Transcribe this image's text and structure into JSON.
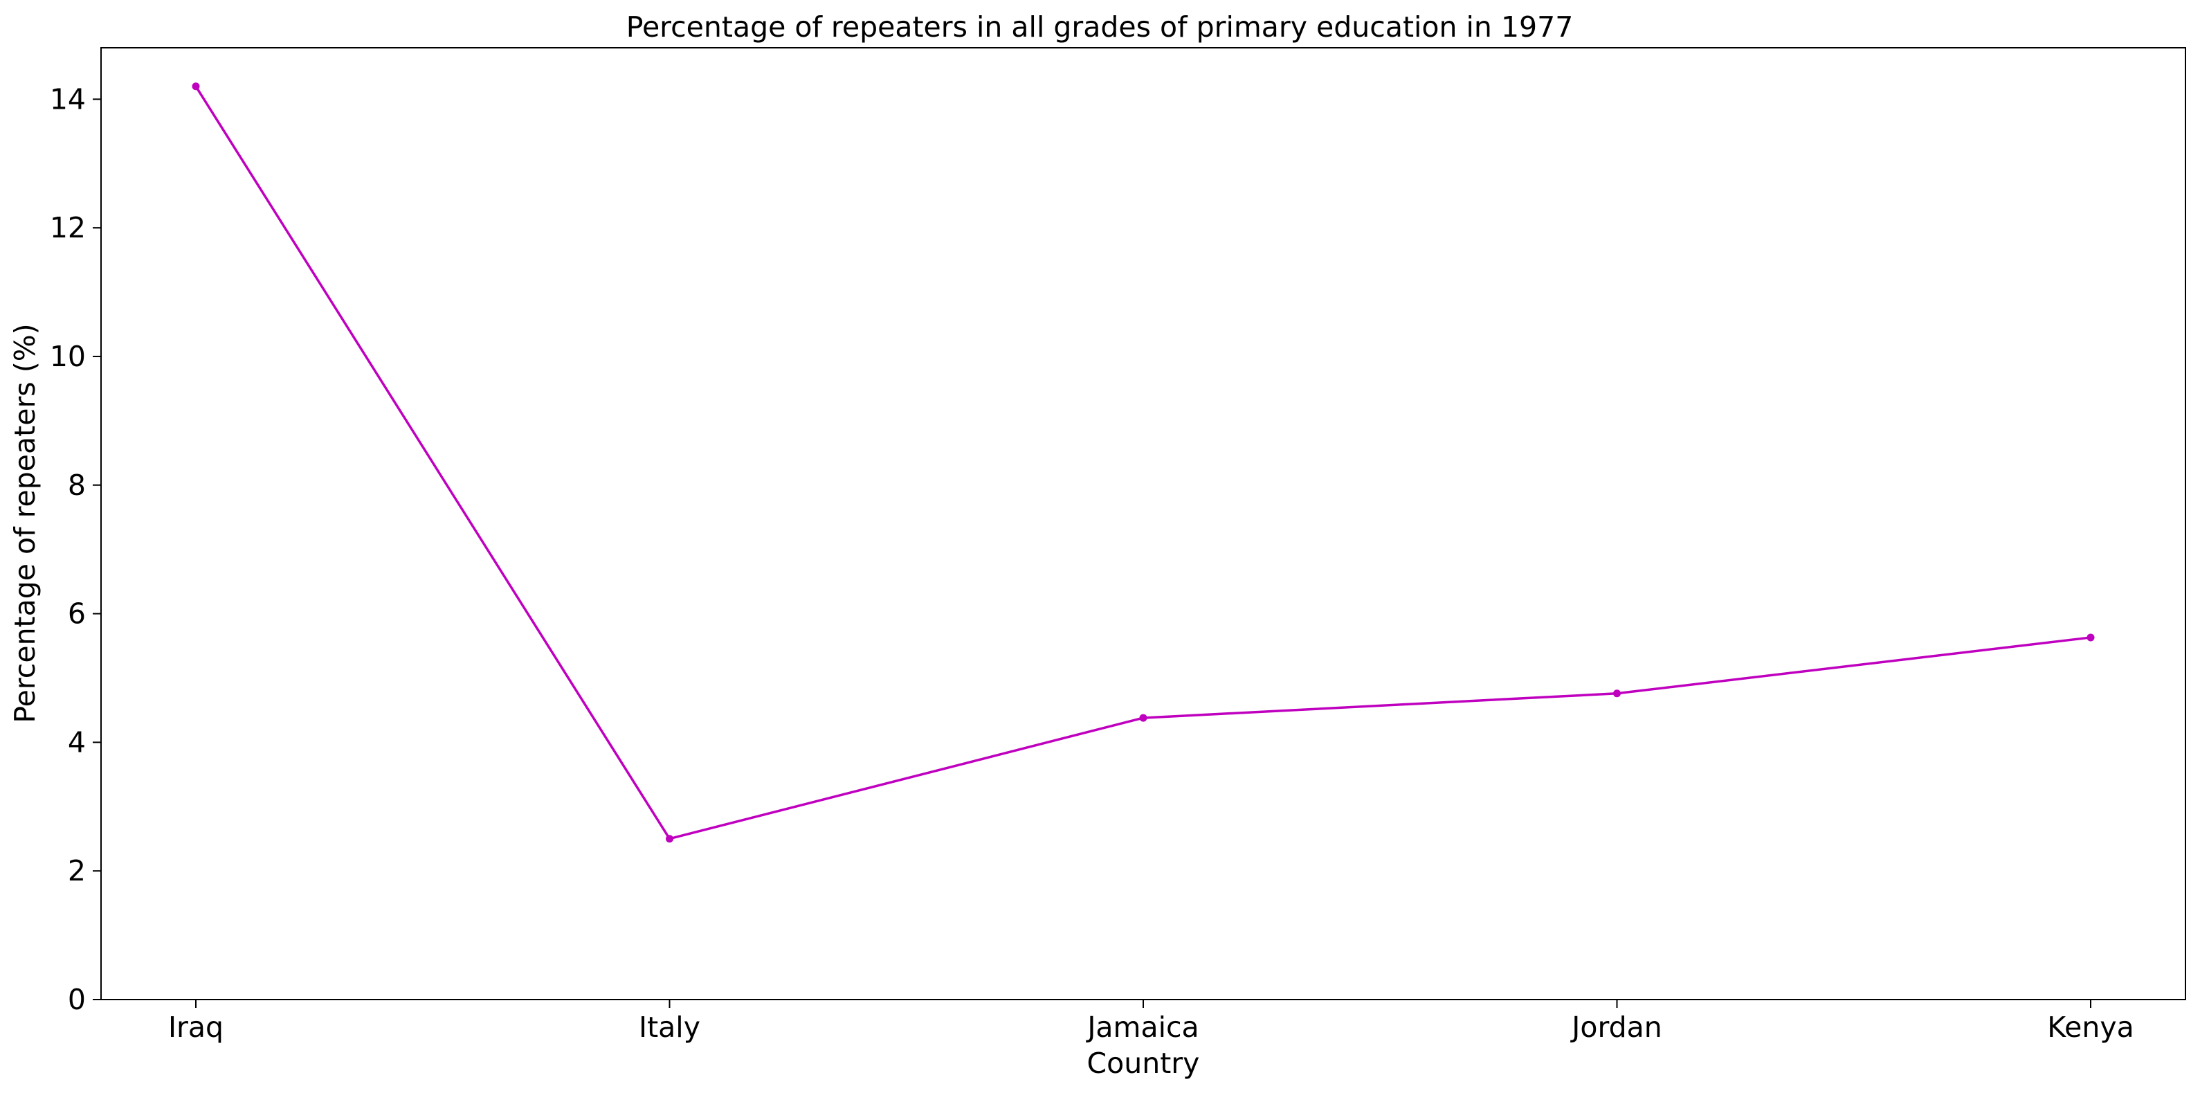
{
  "chart_data": {
    "type": "line",
    "title": "Percentage of repeaters in all grades of primary education in 1977",
    "xlabel": "Country",
    "ylabel": "Percentage of repeaters (%)",
    "categories": [
      "Iraq",
      "Italy",
      "Jamaica",
      "Jordan",
      "Kenya"
    ],
    "series": [
      {
        "values": [
          14.2,
          2.5,
          4.38,
          4.76,
          5.63
        ],
        "color": "#bf00bf"
      }
    ],
    "ylim": [
      0,
      14.8
    ],
    "yticks": [
      0,
      2,
      4,
      6,
      8,
      10,
      12,
      14
    ],
    "grid": false,
    "marker": "dot"
  }
}
